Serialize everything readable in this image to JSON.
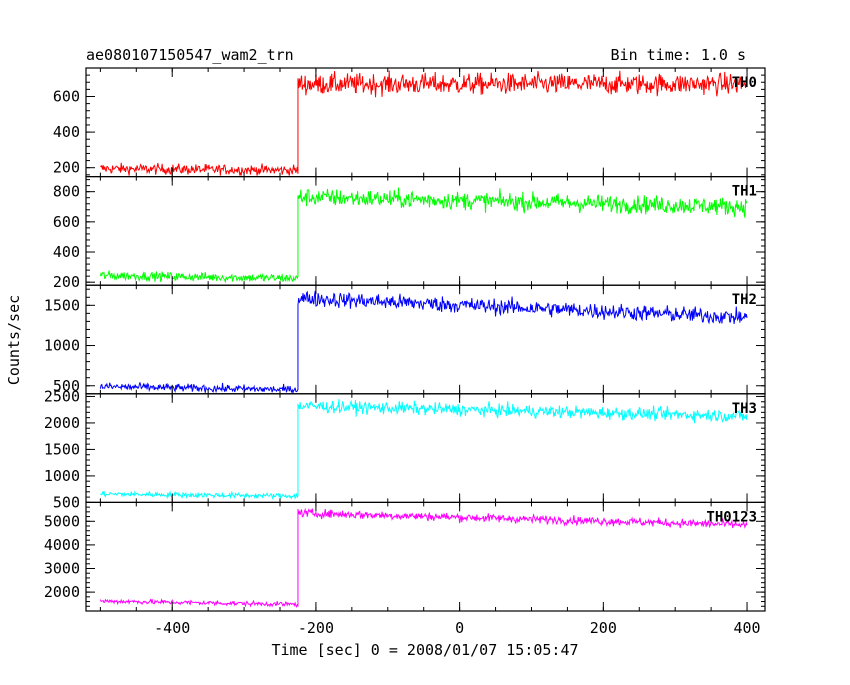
{
  "header": {
    "title": "ae080107150547_wam2_trn",
    "bin_time": "Bin time: 1.0 s"
  },
  "xlabel": "Time [sec] 0 = 2008/01/07 15:05:47",
  "ylabel": "Counts/sec",
  "chart_data": {
    "type": "line",
    "title": "ae080107150547_wam2_trn",
    "subtitle": "Bin time: 1.0 s",
    "xlabel": "Time [sec] 0 = 2008/01/07 15:05:47",
    "ylabel": "Counts/sec",
    "xlim": [
      -520,
      425
    ],
    "x_ticks": [
      -400,
      -200,
      0,
      200,
      400
    ],
    "x_range_data": [
      -500,
      400
    ],
    "grid": false,
    "series": [
      {
        "name": "TH0",
        "color": "#ff0000",
        "ylim": [
          150,
          760
        ],
        "y_ticks": [
          200,
          400,
          600
        ],
        "segments": [
          {
            "x": [
              -500,
              -225
            ],
            "y": [
              195,
              185
            ],
            "noise": 15
          },
          {
            "x": [
              -225,
              400
            ],
            "y": [
              670,
              670
            ],
            "noise": 30
          }
        ]
      },
      {
        "name": "TH1",
        "color": "#00ff00",
        "ylim": [
          180,
          900
        ],
        "y_ticks": [
          200,
          400,
          600,
          800
        ],
        "segments": [
          {
            "x": [
              -500,
              -225
            ],
            "y": [
              245,
              225
            ],
            "noise": 15
          },
          {
            "x": [
              -225,
              400
            ],
            "y": [
              765,
              700
            ],
            "noise": 30
          }
        ]
      },
      {
        "name": "TH2",
        "color": "#0000ff",
        "ylim": [
          400,
          1750
        ],
        "y_ticks": [
          500,
          1000,
          1500
        ],
        "segments": [
          {
            "x": [
              -500,
              -225
            ],
            "y": [
              490,
              450
            ],
            "noise": 25
          },
          {
            "x": [
              -225,
              400
            ],
            "y": [
              1590,
              1350
            ],
            "noise": 50
          }
        ]
      },
      {
        "name": "TH3",
        "color": "#00ffff",
        "ylim": [
          500,
          2550
        ],
        "y_ticks": [
          500,
          1000,
          1500,
          2000,
          2500
        ],
        "segments": [
          {
            "x": [
              -500,
              -225
            ],
            "y": [
              660,
              620
            ],
            "noise": 25
          },
          {
            "x": [
              -225,
              400
            ],
            "y": [
              2320,
              2130
            ],
            "noise": 60
          }
        ]
      },
      {
        "name": "TH0123",
        "color": "#ff00ff",
        "ylim": [
          1200,
          5800
        ],
        "y_ticks": [
          2000,
          3000,
          4000,
          5000
        ],
        "segments": [
          {
            "x": [
              -500,
              -225
            ],
            "y": [
              1620,
              1480
            ],
            "noise": 50
          },
          {
            "x": [
              -225,
              400
            ],
            "y": [
              5350,
              4850
            ],
            "noise": 90
          }
        ]
      }
    ]
  }
}
